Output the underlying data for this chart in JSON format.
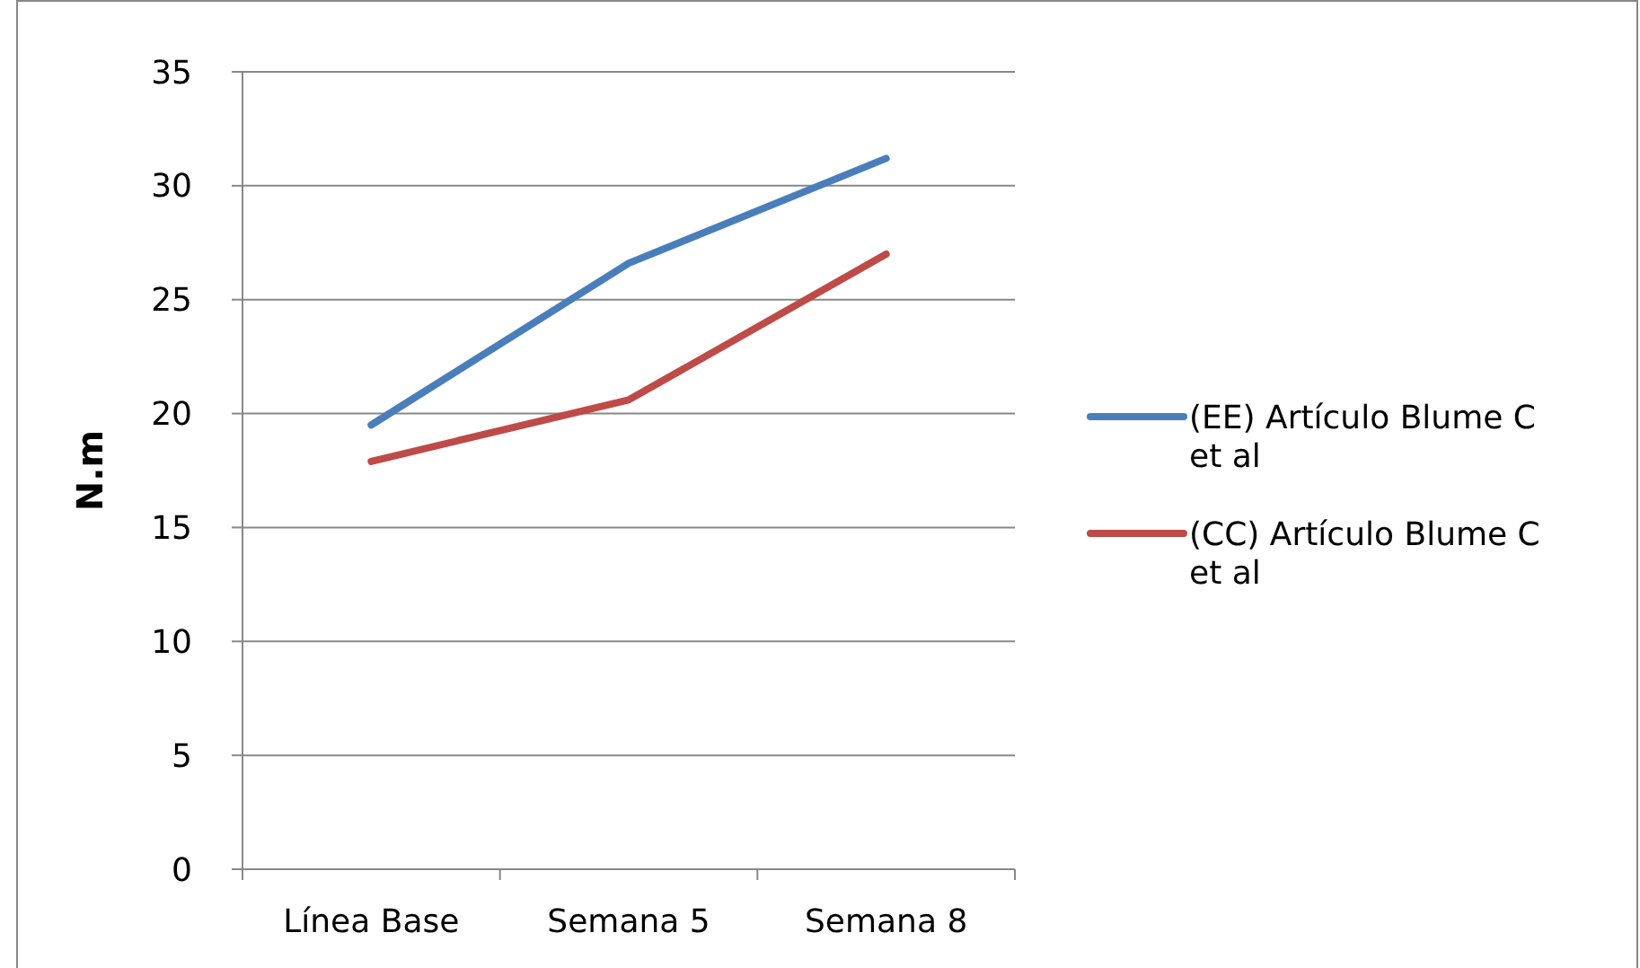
{
  "chart_data": {
    "type": "line",
    "ylabel": "N.m",
    "categories": [
      "Línea Base",
      "Semana 5",
      "Semana 8"
    ],
    "series": [
      {
        "name": "(EE) Artículo Blume C et al",
        "color": "#4a7ebb",
        "values": [
          19.5,
          26.6,
          31.2
        ]
      },
      {
        "name": "(CC) Artículo Blume C et al",
        "color": "#be4b48",
        "values": [
          17.9,
          20.6,
          27.0
        ]
      }
    ],
    "ylim": [
      0,
      35
    ],
    "yticks": [
      0,
      5,
      10,
      15,
      20,
      25,
      30,
      35
    ],
    "grid": "y",
    "legend": "right",
    "marker": "none",
    "line_style": "solid"
  }
}
